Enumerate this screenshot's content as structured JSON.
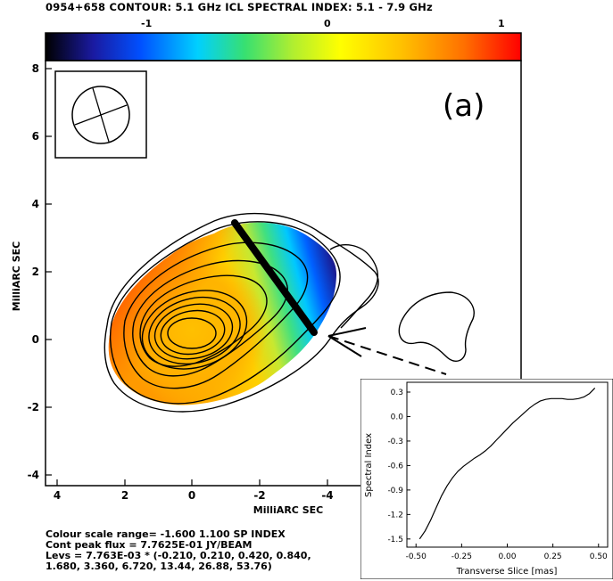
{
  "header": {
    "title": "0954+658  CONTOUR: 5.1 GHz ICL   SPECTRAL INDEX: 5.1 - 7.9 GHz"
  },
  "colorbar": {
    "tick_labels": [
      "-1",
      "0",
      "1"
    ],
    "colors": [
      "#000000",
      "#1a1aa0",
      "#0050ff",
      "#00d0ff",
      "#38e070",
      "#b0ee30",
      "#ffff00",
      "#ffc000",
      "#ff7000",
      "#ff0000"
    ]
  },
  "map": {
    "panel_label": "(a)",
    "xlabel": "MilliARC SEC",
    "ylabel": "MilliARC SEC",
    "x_ticks": [
      "4",
      "2",
      "0",
      "-2",
      "-4"
    ],
    "y_ticks": [
      "8",
      "6",
      "4",
      "2",
      "0",
      "-2",
      "-4"
    ]
  },
  "caption": {
    "line1": "Colour scale range= -1.600 1.100 SP INDEX",
    "line2": "Cont peak flux =  7.7625E-01 JY/BEAM",
    "line3": "Levs = 7.763E-03 * (-0.210, 0.210, 0.420, 0.840,",
    "line4": "1.680, 3.360, 6.720, 13.44, 26.88, 53.76)"
  },
  "chart_data": {
    "type": "line",
    "title": "",
    "xlabel": "Transverse Slice [mas]",
    "ylabel": "Spectral Index",
    "xlim": [
      -0.55,
      0.55
    ],
    "ylim": [
      -1.6,
      0.42
    ],
    "x_ticks": [
      -0.5,
      -0.25,
      0.0,
      0.25,
      0.5
    ],
    "y_ticks": [
      0.3,
      0.0,
      -0.3,
      -0.6,
      -0.9,
      -1.2,
      -1.5
    ],
    "x_tick_labels": [
      "-0.50",
      "-0.25",
      "0.00",
      "0.25",
      "0.50"
    ],
    "y_tick_labels": [
      "0.3",
      "0.0",
      "-0.3",
      "-0.6",
      "-0.9",
      "-1.2",
      "-1.5"
    ],
    "grid": false,
    "series": [
      {
        "x": [
          -0.48,
          -0.45,
          -0.42,
          -0.39,
          -0.36,
          -0.33,
          -0.3,
          -0.27,
          -0.24,
          -0.21,
          -0.18,
          -0.15,
          -0.12,
          -0.09,
          -0.06,
          -0.03,
          0.0,
          0.03,
          0.06,
          0.09,
          0.12,
          0.15,
          0.18,
          0.21,
          0.24,
          0.27,
          0.3,
          0.33,
          0.36,
          0.39,
          0.42,
          0.45,
          0.48
        ],
        "y": [
          -1.5,
          -1.4,
          -1.27,
          -1.12,
          -0.97,
          -0.85,
          -0.75,
          -0.67,
          -0.61,
          -0.56,
          -0.51,
          -0.47,
          -0.42,
          -0.36,
          -0.29,
          -0.22,
          -0.15,
          -0.08,
          -0.02,
          0.04,
          0.1,
          0.15,
          0.19,
          0.21,
          0.22,
          0.22,
          0.22,
          0.21,
          0.21,
          0.22,
          0.24,
          0.28,
          0.35
        ]
      }
    ]
  }
}
